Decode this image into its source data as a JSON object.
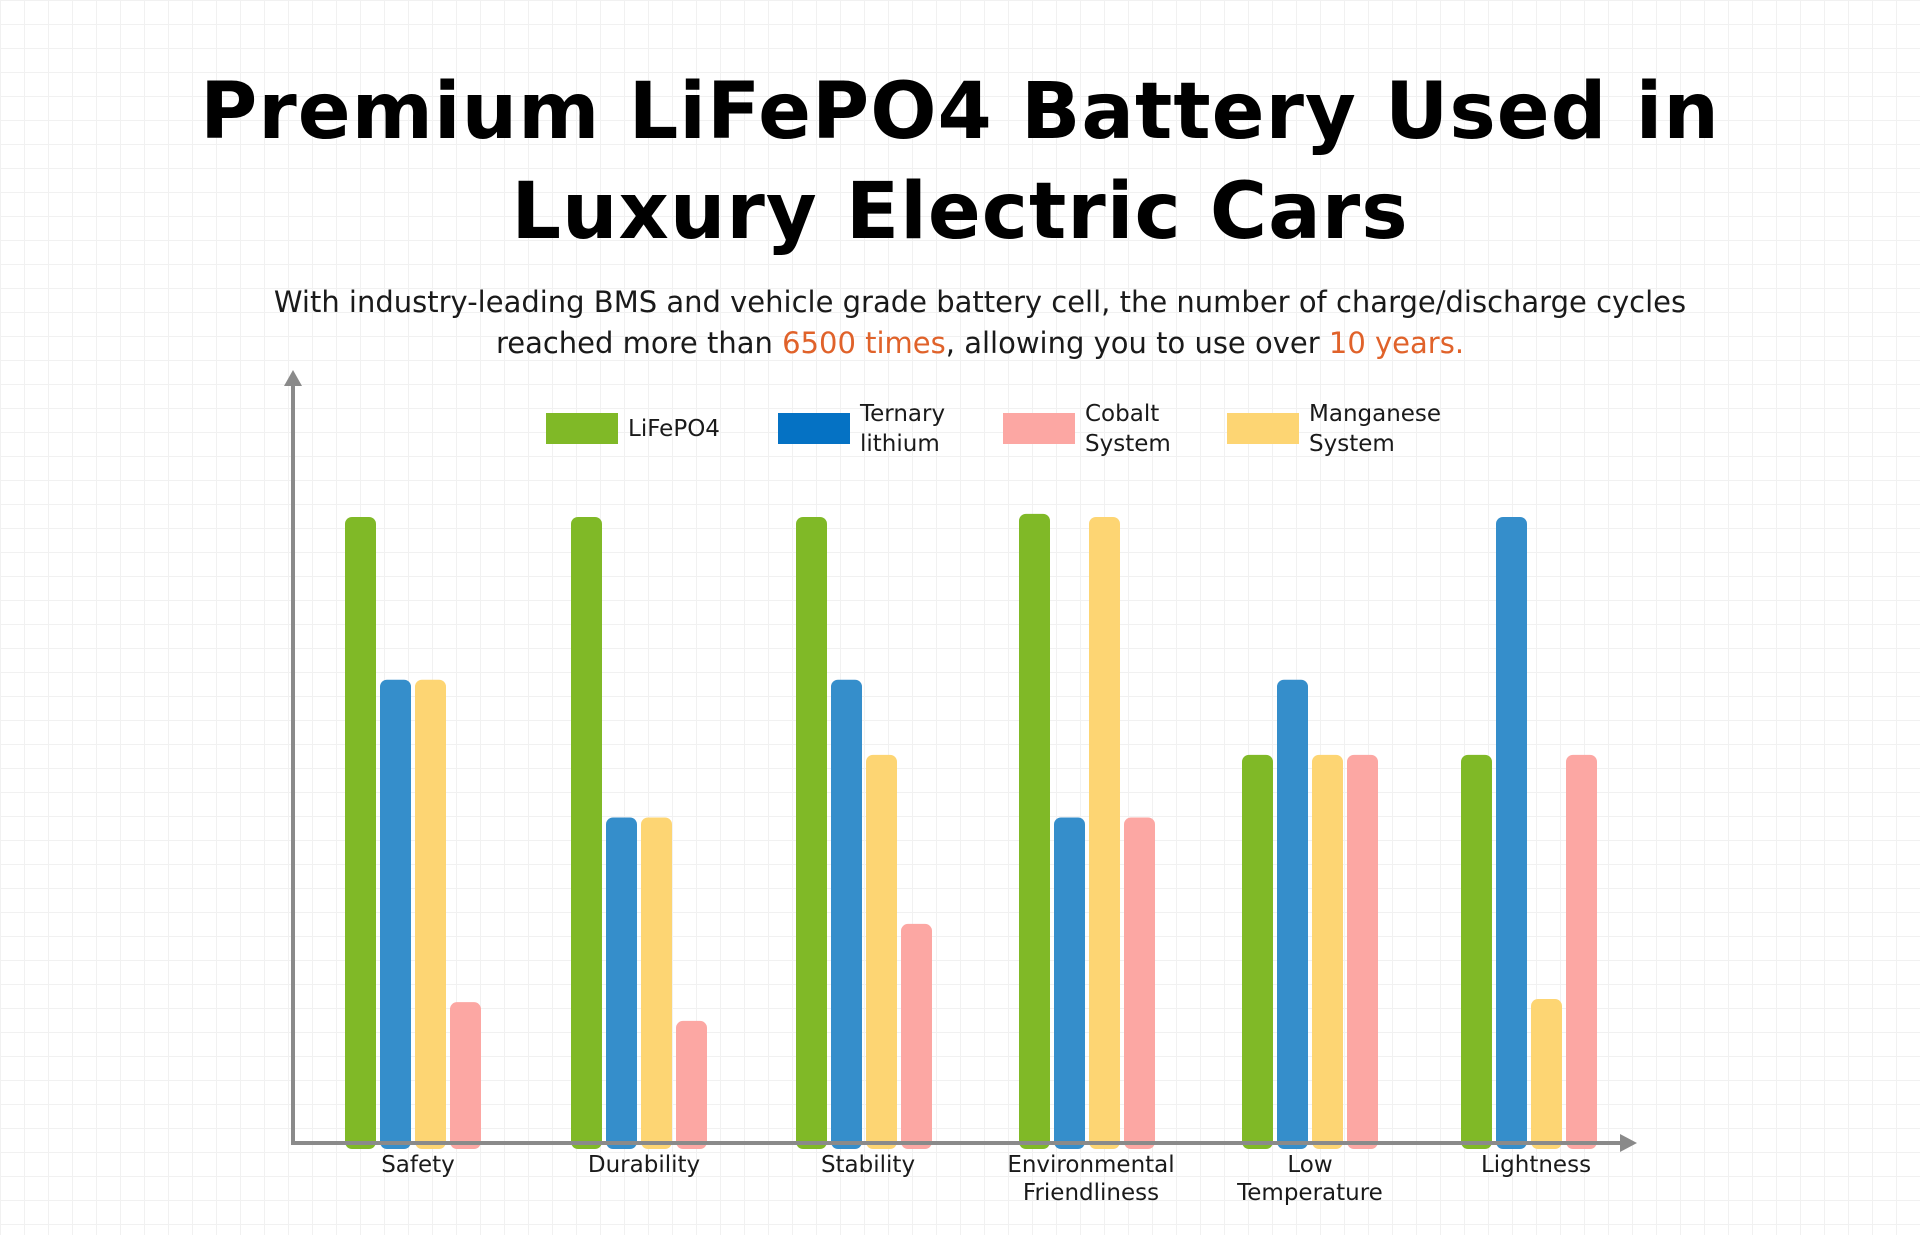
{
  "title_line1": "Premium LiFePO4 Battery Used in",
  "title_line2": "Luxury Electric Cars",
  "subtitle": {
    "line1": "With industry-leading BMS and vehicle grade battery cell, the number of charge/discharge cycles",
    "line2_prefix": "reached more than ",
    "line2_highlight1": "6500 times",
    "line2_middle": ", allowing you to use over ",
    "line2_highlight2": "10 years.",
    "highlight_color": "#e0622a"
  },
  "chart_data": {
    "type": "bar",
    "categories": [
      [
        "Safety"
      ],
      [
        "Durability"
      ],
      [
        "Stability"
      ],
      [
        "Environmental",
        "Friendliness"
      ],
      [
        "Low",
        "Temperature"
      ],
      [
        "Lightness"
      ]
    ],
    "legend": [
      {
        "name": [
          "LiFePO4"
        ],
        "color": "#80b927"
      },
      {
        "name": [
          "Ternary",
          "lithium"
        ],
        "color": "#0572c4"
      },
      {
        "name": [
          "Cobalt",
          "System"
        ],
        "color": "#fca7a3"
      },
      {
        "name": [
          "Manganese",
          "System"
        ],
        "color": "#fdd573"
      }
    ],
    "series": [
      {
        "key": "lifepo4",
        "color": "#80b927",
        "values": [
          100,
          100,
          100,
          100.5,
          62,
          62
        ]
      },
      {
        "key": "ternary",
        "color": "#358ecb",
        "values": [
          74,
          52,
          74,
          52,
          74,
          100
        ]
      },
      {
        "key": "manganese",
        "color": "#fdd573",
        "values": [
          74,
          52,
          62,
          100,
          62,
          23
        ]
      },
      {
        "key": "cobalt",
        "color": "#fca7a3",
        "values": [
          22.5,
          19.5,
          35,
          52,
          62,
          62
        ]
      }
    ],
    "bar_order_per_category": [
      [
        "lifepo4",
        "ternary",
        "manganese",
        "cobalt"
      ],
      [
        "lifepo4",
        "ternary",
        "manganese",
        "cobalt"
      ],
      [
        "lifepo4",
        "ternary",
        "manganese",
        "cobalt"
      ],
      [
        "lifepo4",
        "ternary",
        "manganese",
        "cobalt"
      ],
      [
        "lifepo4",
        "ternary",
        "manganese",
        "cobalt"
      ],
      [
        "lifepo4",
        "ternary",
        "manganese",
        "cobalt"
      ]
    ],
    "ylim": [
      0,
      100
    ],
    "axis_color": "#8a8a8a",
    "grid": true,
    "legend_position": "top"
  }
}
